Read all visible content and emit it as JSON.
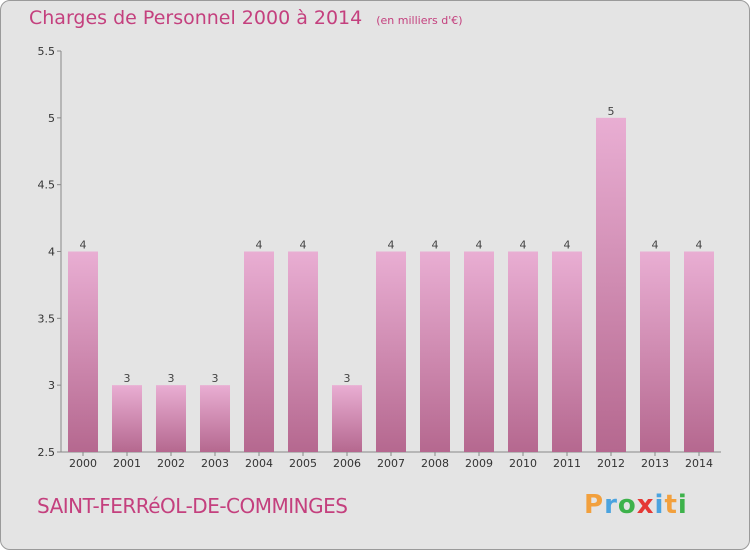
{
  "header": {
    "title": "Charges de Personnel 2000 à 2014",
    "unit": "(en milliers d'€)"
  },
  "footer": {
    "commune": "SAINT-FERRéOL-DE-COMMINGES",
    "logo_letters": [
      "P",
      "r",
      "o",
      "x",
      "i",
      "t",
      "i"
    ],
    "logo_colors": [
      "#f2a03d",
      "#4aa3df",
      "#3db24b",
      "#e53935",
      "#4aa3df",
      "#f2a03d",
      "#3db24b"
    ]
  },
  "colors": {
    "bar_top": "#e9aed3",
    "bar_bottom": "#b5688f",
    "title": "#c4407e"
  },
  "chart_data": {
    "type": "bar",
    "categories": [
      "2000",
      "2001",
      "2002",
      "2003",
      "2004",
      "2005",
      "2006",
      "2007",
      "2008",
      "2009",
      "2010",
      "2011",
      "2012",
      "2013",
      "2014"
    ],
    "values": [
      4,
      3,
      3,
      3,
      4,
      4,
      3,
      4,
      4,
      4,
      4,
      4,
      5,
      4,
      4
    ],
    "data_labels": [
      "4",
      "3",
      "3",
      "3",
      "4",
      "4",
      "3",
      "4",
      "4",
      "4",
      "4",
      "4",
      "5",
      "4",
      "4"
    ],
    "yticks": [
      2.5,
      3,
      3.5,
      4,
      4.5,
      5,
      5.5
    ],
    "ytick_labels": [
      "2.5",
      "3",
      "3.5",
      "4",
      "4.5",
      "5",
      "5.5"
    ],
    "ylim": [
      2.5,
      5.5
    ],
    "title": "Charges de Personnel 2000 à 2014",
    "xlabel": "",
    "ylabel": "",
    "grid": false
  }
}
